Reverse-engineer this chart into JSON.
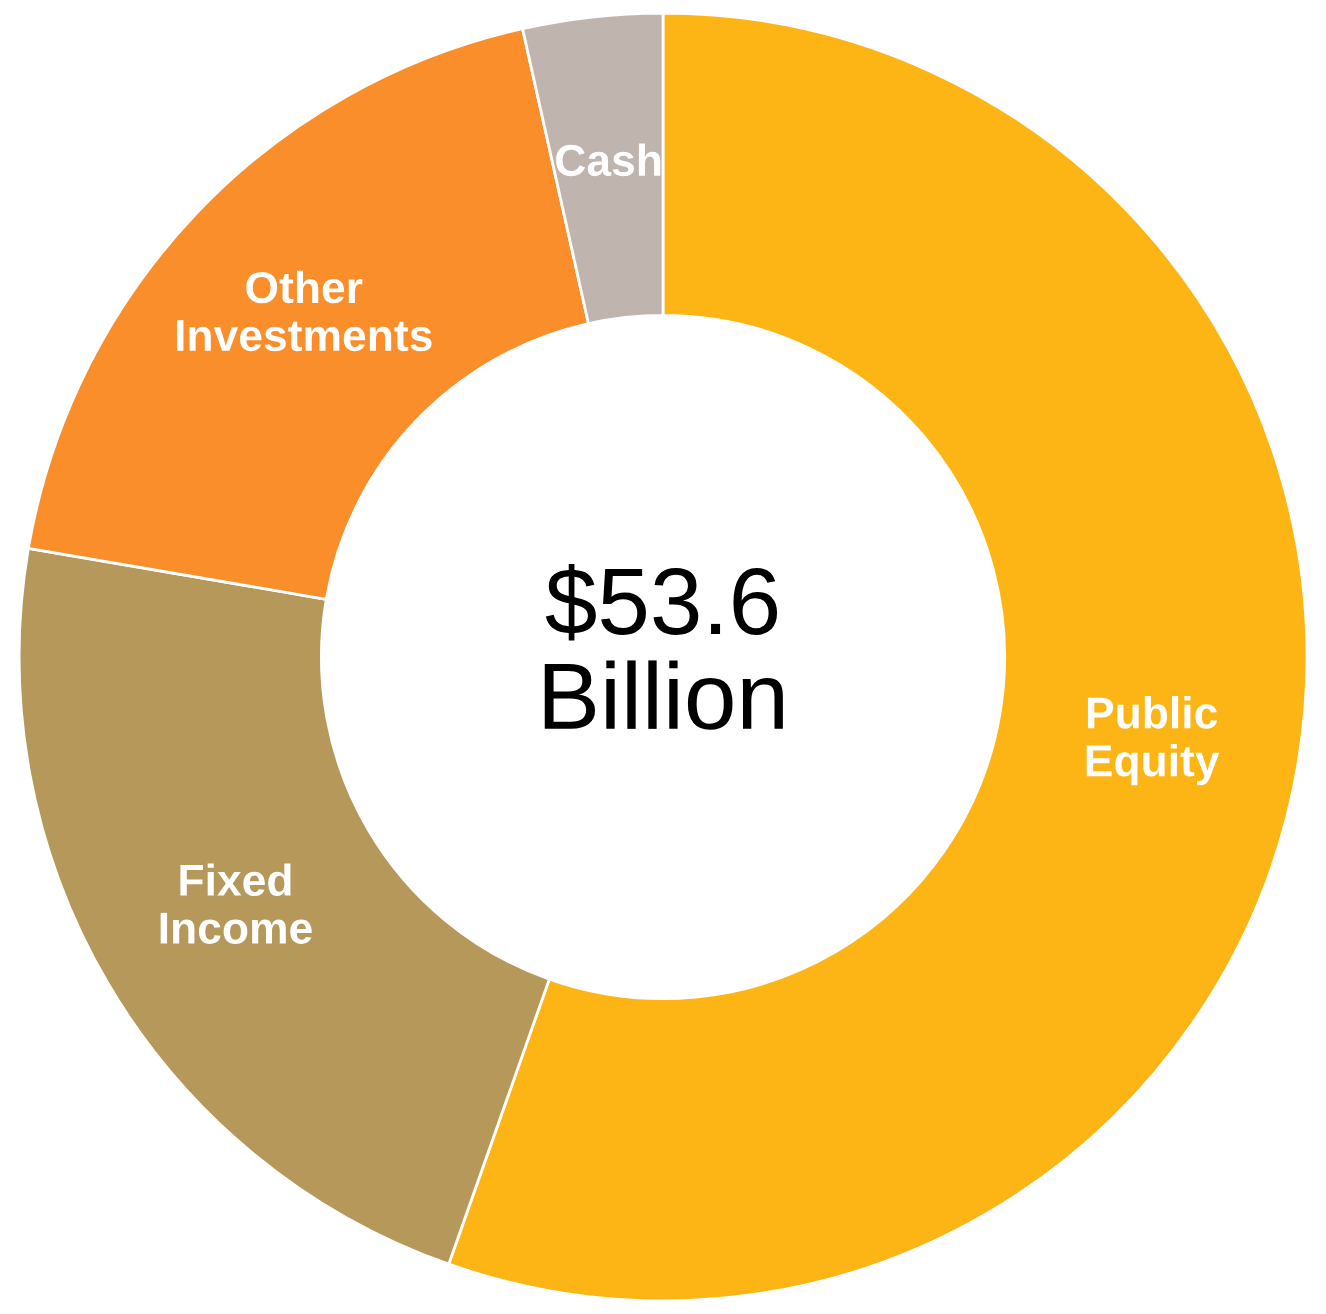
{
  "chart_data": {
    "type": "donut",
    "categories": [
      "Public Equity",
      "Fixed Income",
      "Other Investments",
      "Cash"
    ],
    "values": [
      55.4,
      22.3,
      18.8,
      3.5
    ],
    "colors": [
      "#fdb515",
      "#b5985a",
      "#f98e2b",
      "#bfb5ae"
    ],
    "annotations": [
      "$53.6 Billion"
    ],
    "legend": false
  }
}
